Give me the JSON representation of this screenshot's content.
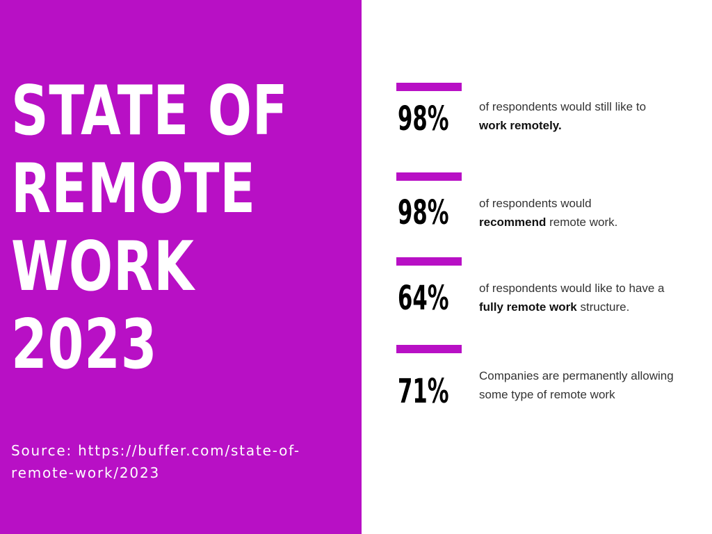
{
  "colors": {
    "accent": "#b810c5",
    "panel_text": "#ffffff",
    "stat_value": "#000000",
    "body_text": "#333333",
    "background": "#ffffff"
  },
  "title": {
    "lines": [
      "STATE OF",
      "REMOTE",
      "WORK",
      "2023"
    ]
  },
  "source": {
    "line1": "Source: https://buffer.com/state-of-",
    "line2": "remote-work/2023"
  },
  "stats": [
    {
      "value": "98%",
      "parts": [
        {
          "text": "of respondents would still like to ",
          "bold": false
        },
        {
          "text": "work remotely.",
          "bold": true
        }
      ]
    },
    {
      "value": "98%",
      "parts": [
        {
          "text": "of respondents would ",
          "bold": false
        },
        {
          "text": "recommend",
          "bold": true
        },
        {
          "text": " remote work.",
          "bold": false
        }
      ]
    },
    {
      "value": "64%",
      "parts": [
        {
          "text": "of respondents would like to have a ",
          "bold": false
        },
        {
          "text": "fully remote work",
          "bold": true
        },
        {
          "text": " structure.",
          "bold": false
        }
      ]
    },
    {
      "value": "71%",
      "parts": [
        {
          "text": "Companies are permanently allowing some type of remote work",
          "bold": false
        }
      ]
    }
  ]
}
